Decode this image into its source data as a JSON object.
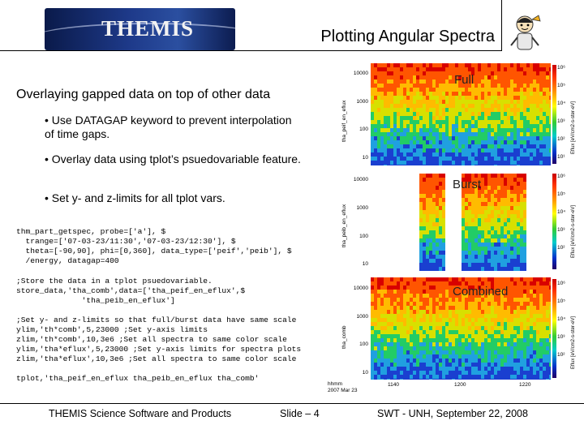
{
  "header": {
    "logo_text": "THEMIS",
    "title": "Plotting Angular Spectra"
  },
  "slide": {
    "subtitle": "Overlaying gapped data on top of other data",
    "bullets": [
      "• Use DATAGAP keyword to prevent interpolation of time gaps.",
      "• Overlay data using tplot’s psuedovariable feature.",
      "• Set y- and z-limits for all tplot vars."
    ],
    "code_blocks": [
      "thm_part_getspec, probe=['a'], $\n  trange=['07-03-23/11:30','07-03-23/12:30'], $\n  theta=[-90,90], phi=[0,360], data_type=['peif','peib'], $\n  /energy, datagap=400",
      ";Store the data in a tplot psuedovariable.\nstore_data,'tha_comb',data=['tha_peif_en_eflux',$\n              'tha_peib_en_eflux']",
      ";Set y- and z-limits so that full/burst data have same scale\nylim,'th*comb',5,23000 ;Set y-axis limits\nzlim,'th*comb',10,3e6 ;Set all spectra to same color scale\nylim,'tha*eflux',5,23000 ;Set y-axis limits for spectra plots\nzlim,'tha*eflux',10,3e6 ;Set all spectra to same color scale",
      "tplot,'tha_peif_en_eflux tha_peib_en_eflux tha_comb'"
    ]
  },
  "plots": {
    "panels": [
      {
        "label": "Full",
        "ytitle": "tha_peif_en_eflux",
        "yticks": [
          "10000",
          "1000",
          "100",
          "10"
        ]
      },
      {
        "label": "Burst",
        "ytitle": "tha_peib_en_eflux",
        "yticks": [
          "10000",
          "1000",
          "100",
          "10"
        ]
      },
      {
        "label": "Combined",
        "ytitle": "tha_comb",
        "yticks": [
          "10000",
          "1000",
          "100",
          "10"
        ]
      }
    ],
    "colorbar_title": "Eflux [eV/cm2-s-ster-eV]",
    "colorbar_ticks": [
      "10⁶",
      "10⁵",
      "10⁴",
      "10³",
      "10²",
      "10¹"
    ],
    "xticks": [
      "1140",
      "1200",
      "1220"
    ],
    "stamp_line1": "hhmm",
    "stamp_line2": "2007 Mar 23",
    "colors": {
      "high": "#d80000",
      "mid": "#ffcc00",
      "low": "#1a3fd0",
      "gap": "#ffffff"
    }
  },
  "footer": {
    "left": "THEMIS Science Software and Products",
    "middle": "Slide – 4",
    "right": "SWT - UNH, September 22, 2008"
  }
}
